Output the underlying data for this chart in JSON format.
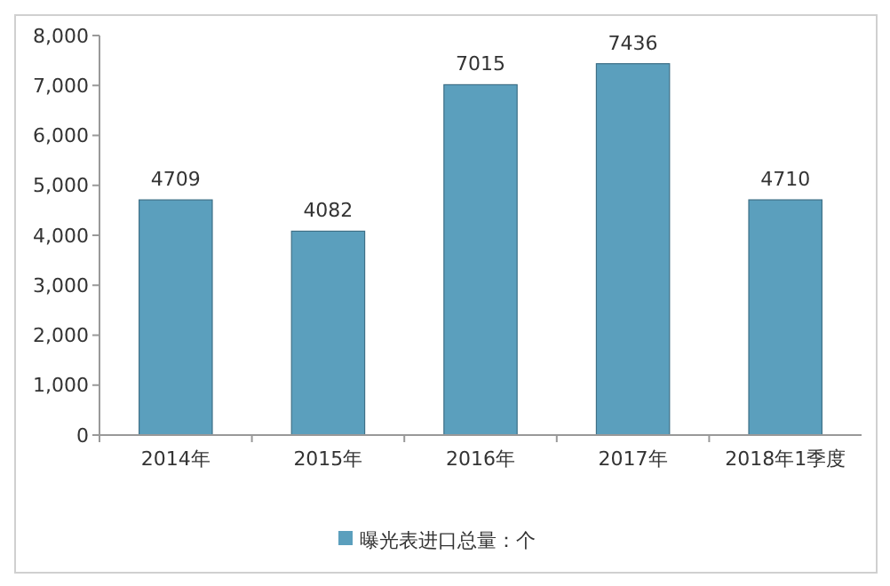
{
  "chart_data": {
    "type": "bar",
    "categories": [
      "2014年",
      "2015年",
      "2016年",
      "2017年",
      "2018年1季度"
    ],
    "series": [
      {
        "name": "曝光表进口总量：个",
        "color": "#5b9fbd",
        "values": [
          4709,
          4082,
          7015,
          7436,
          4710
        ]
      }
    ],
    "ylim": [
      0,
      8000
    ],
    "yticks": [
      {
        "value": 0,
        "label": "0"
      },
      {
        "value": 1000,
        "label": "1,000"
      },
      {
        "value": 2000,
        "label": "2,000"
      },
      {
        "value": 3000,
        "label": "3,000"
      },
      {
        "value": 4000,
        "label": "4,000"
      },
      {
        "value": 5000,
        "label": "5,000"
      },
      {
        "value": 6000,
        "label": "6,000"
      },
      {
        "value": 7000,
        "label": "7,000"
      },
      {
        "value": 8000,
        "label": "8,000"
      }
    ],
    "data_labels": true,
    "legend": "bottom",
    "grid": false
  }
}
